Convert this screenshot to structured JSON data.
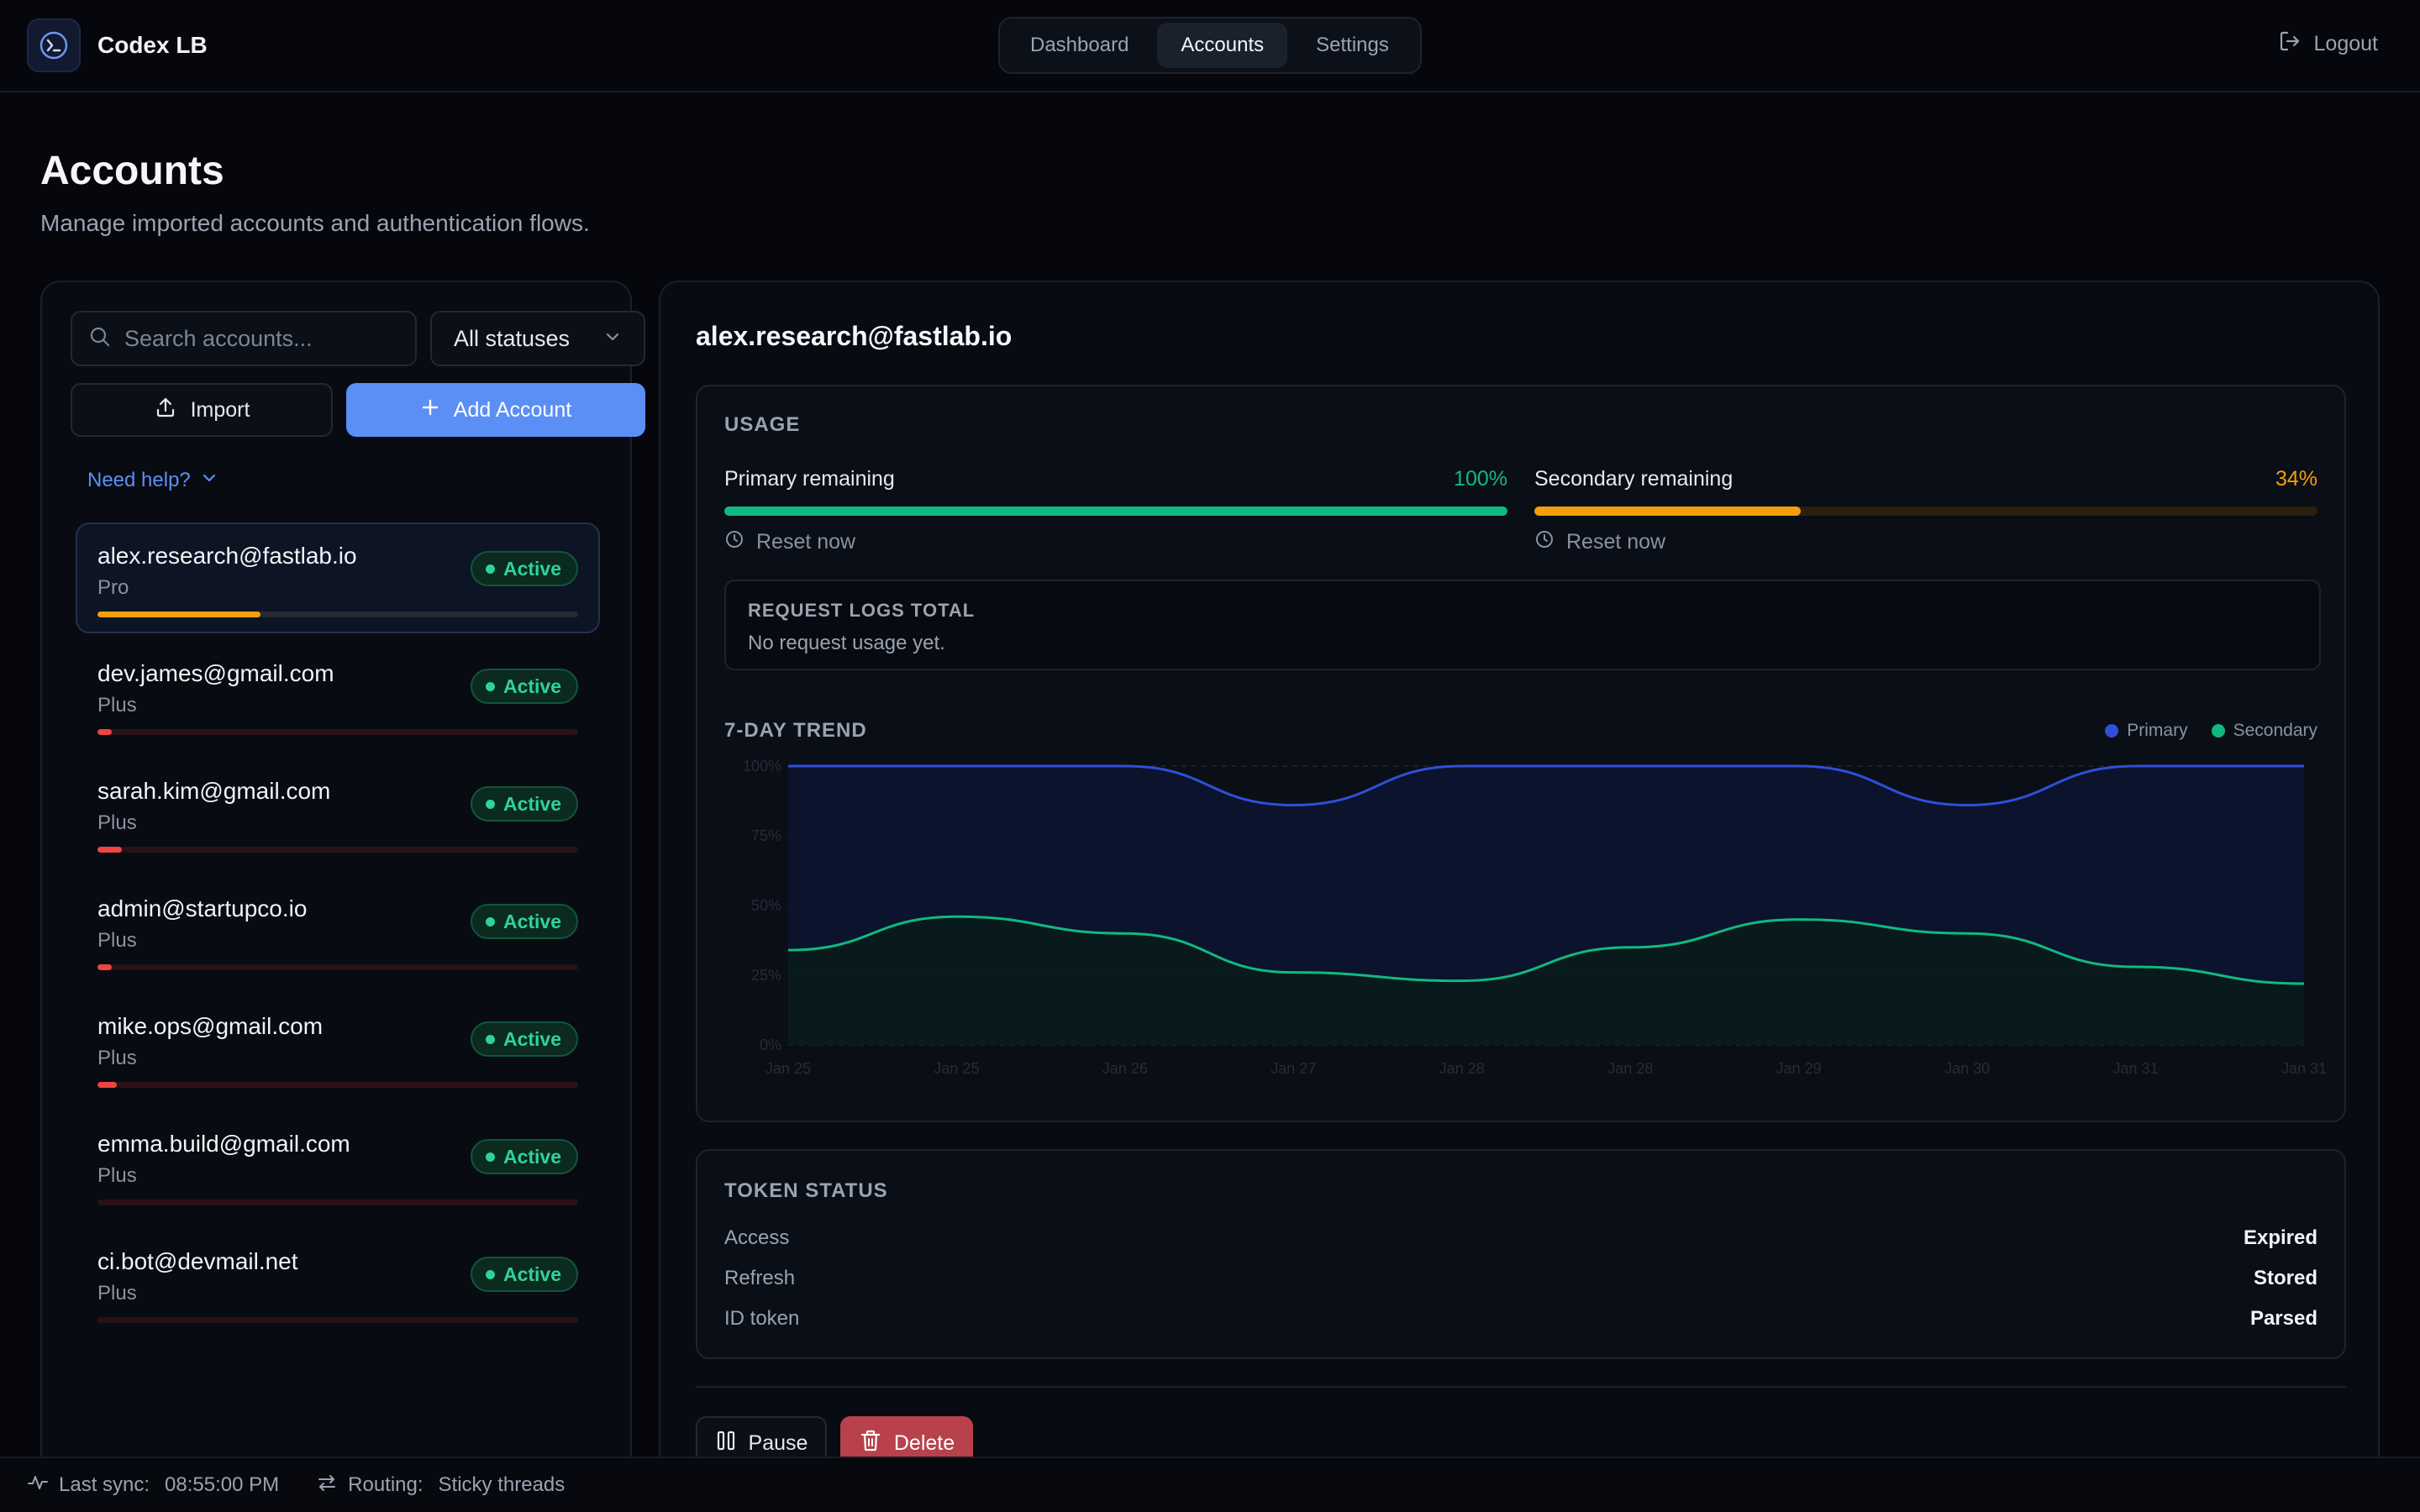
{
  "app": {
    "name": "Codex LB",
    "logo_icon": "terminal-icon"
  },
  "nav": {
    "tabs": [
      {
        "label": "Dashboard",
        "active": false
      },
      {
        "label": "Accounts",
        "active": true
      },
      {
        "label": "Settings",
        "active": false
      }
    ],
    "logout_label": "Logout"
  },
  "page": {
    "title": "Accounts",
    "subtitle": "Manage imported accounts and authentication flows."
  },
  "sidebar": {
    "search_placeholder": "Search accounts...",
    "status_filter": "All statuses",
    "import_label": "Import",
    "add_label": "Add Account",
    "help_label": "Need help?",
    "accounts": [
      {
        "email": "alex.research@fastlab.io",
        "plan": "Pro",
        "status": "Active",
        "usage": 0.34,
        "bar_color": "#f59e0b",
        "selected": true
      },
      {
        "email": "dev.james@gmail.com",
        "plan": "Plus",
        "status": "Active",
        "usage": 0.03,
        "bar_color": "#ef4444",
        "selected": false
      },
      {
        "email": "sarah.kim@gmail.com",
        "plan": "Plus",
        "status": "Active",
        "usage": 0.05,
        "bar_color": "#ef4444",
        "selected": false
      },
      {
        "email": "admin@startupco.io",
        "plan": "Plus",
        "status": "Active",
        "usage": 0.03,
        "bar_color": "#ef4444",
        "selected": false
      },
      {
        "email": "mike.ops@gmail.com",
        "plan": "Plus",
        "status": "Active",
        "usage": 0.04,
        "bar_color": "#ef4444",
        "selected": false
      },
      {
        "email": "emma.build@gmail.com",
        "plan": "Plus",
        "status": "Active",
        "usage": 0.0,
        "bar_color": "#ef4444",
        "selected": false
      },
      {
        "email": "ci.bot@devmail.net",
        "plan": "Plus",
        "status": "Active",
        "usage": 0.0,
        "bar_color": "#ef4444",
        "selected": false
      }
    ]
  },
  "detail": {
    "email": "alex.research@fastlab.io",
    "usage": {
      "heading": "USAGE",
      "primary": {
        "label": "Primary remaining",
        "value": "100%",
        "fraction": 1.0,
        "color": "#10b981",
        "track": "#0f2a22",
        "reset": "Reset now"
      },
      "secondary": {
        "label": "Secondary remaining",
        "value": "34%",
        "fraction": 0.34,
        "color": "#f59e0b",
        "track": "#2b1f0e",
        "reset": "Reset now"
      }
    },
    "logs": {
      "title": "REQUEST LOGS TOTAL",
      "value": "No request usage yet."
    },
    "trend": {
      "heading": "7-DAY TREND"
    },
    "token": {
      "heading": "TOKEN STATUS",
      "rows": [
        {
          "key": "Access",
          "value": "Expired"
        },
        {
          "key": "Refresh",
          "value": "Stored"
        },
        {
          "key": "ID token",
          "value": "Parsed"
        }
      ]
    },
    "pause_label": "Pause",
    "delete_label": "Delete"
  },
  "chart_data": {
    "type": "area",
    "title": "7-DAY TREND",
    "x": [
      "Jan 25",
      "Jan 25",
      "Jan 26",
      "Jan 27",
      "Jan 28",
      "Jan 28",
      "Jan 29",
      "Jan 30",
      "Jan 31",
      "Jan 31"
    ],
    "ylim": [
      0,
      100
    ],
    "yticks": [
      "0%",
      "25%",
      "50%",
      "75%",
      "100%"
    ],
    "grid": true,
    "legend_position": "top-right",
    "series": [
      {
        "name": "Primary",
        "color": "#2f4fd8",
        "values": [
          100,
          100,
          100,
          86,
          100,
          100,
          100,
          86,
          100,
          100
        ]
      },
      {
        "name": "Secondary",
        "color": "#10b981",
        "values": [
          34,
          46,
          40,
          26,
          23,
          35,
          45,
          40,
          28,
          22
        ]
      }
    ]
  },
  "footer": {
    "sync_label": "Last sync:",
    "sync_value": "08:55:00 PM",
    "routing_label": "Routing:",
    "routing_value": "Sticky threads"
  }
}
